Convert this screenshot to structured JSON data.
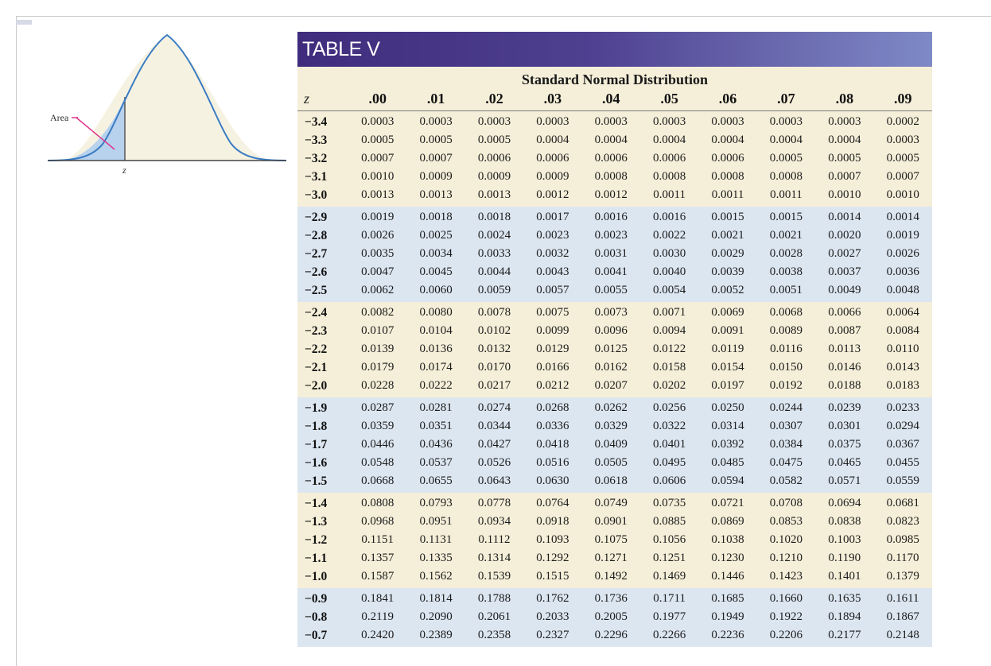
{
  "figure": {
    "area_label": "Area",
    "z_label": "z"
  },
  "table": {
    "title": "TABLE V",
    "subtitle": "Standard Normal Distribution",
    "z_header": "z",
    "columns": [
      ".00",
      ".01",
      ".02",
      ".03",
      ".04",
      ".05",
      ".06",
      ".07",
      ".08",
      ".09"
    ],
    "rows": [
      {
        "z": "−3.4",
        "values": [
          "0.0003",
          "0.0003",
          "0.0003",
          "0.0003",
          "0.0003",
          "0.0003",
          "0.0003",
          "0.0003",
          "0.0003",
          "0.0002"
        ]
      },
      {
        "z": "−3.3",
        "values": [
          "0.0005",
          "0.0005",
          "0.0005",
          "0.0004",
          "0.0004",
          "0.0004",
          "0.0004",
          "0.0004",
          "0.0004",
          "0.0003"
        ]
      },
      {
        "z": "−3.2",
        "values": [
          "0.0007",
          "0.0007",
          "0.0006",
          "0.0006",
          "0.0006",
          "0.0006",
          "0.0006",
          "0.0005",
          "0.0005",
          "0.0005"
        ]
      },
      {
        "z": "−3.1",
        "values": [
          "0.0010",
          "0.0009",
          "0.0009",
          "0.0009",
          "0.0008",
          "0.0008",
          "0.0008",
          "0.0008",
          "0.0007",
          "0.0007"
        ]
      },
      {
        "z": "−3.0",
        "values": [
          "0.0013",
          "0.0013",
          "0.0013",
          "0.0012",
          "0.0012",
          "0.0011",
          "0.0011",
          "0.0011",
          "0.0010",
          "0.0010"
        ]
      },
      {
        "z": "−2.9",
        "values": [
          "0.0019",
          "0.0018",
          "0.0018",
          "0.0017",
          "0.0016",
          "0.0016",
          "0.0015",
          "0.0015",
          "0.0014",
          "0.0014"
        ]
      },
      {
        "z": "−2.8",
        "values": [
          "0.0026",
          "0.0025",
          "0.0024",
          "0.0023",
          "0.0023",
          "0.0022",
          "0.0021",
          "0.0021",
          "0.0020",
          "0.0019"
        ]
      },
      {
        "z": "−2.7",
        "values": [
          "0.0035",
          "0.0034",
          "0.0033",
          "0.0032",
          "0.0031",
          "0.0030",
          "0.0029",
          "0.0028",
          "0.0027",
          "0.0026"
        ]
      },
      {
        "z": "−2.6",
        "values": [
          "0.0047",
          "0.0045",
          "0.0044",
          "0.0043",
          "0.0041",
          "0.0040",
          "0.0039",
          "0.0038",
          "0.0037",
          "0.0036"
        ]
      },
      {
        "z": "−2.5",
        "values": [
          "0.0062",
          "0.0060",
          "0.0059",
          "0.0057",
          "0.0055",
          "0.0054",
          "0.0052",
          "0.0051",
          "0.0049",
          "0.0048"
        ]
      },
      {
        "z": "−2.4",
        "values": [
          "0.0082",
          "0.0080",
          "0.0078",
          "0.0075",
          "0.0073",
          "0.0071",
          "0.0069",
          "0.0068",
          "0.0066",
          "0.0064"
        ]
      },
      {
        "z": "−2.3",
        "values": [
          "0.0107",
          "0.0104",
          "0.0102",
          "0.0099",
          "0.0096",
          "0.0094",
          "0.0091",
          "0.0089",
          "0.0087",
          "0.0084"
        ]
      },
      {
        "z": "−2.2",
        "values": [
          "0.0139",
          "0.0136",
          "0.0132",
          "0.0129",
          "0.0125",
          "0.0122",
          "0.0119",
          "0.0116",
          "0.0113",
          "0.0110"
        ]
      },
      {
        "z": "−2.1",
        "values": [
          "0.0179",
          "0.0174",
          "0.0170",
          "0.0166",
          "0.0162",
          "0.0158",
          "0.0154",
          "0.0150",
          "0.0146",
          "0.0143"
        ]
      },
      {
        "z": "−2.0",
        "values": [
          "0.0228",
          "0.0222",
          "0.0217",
          "0.0212",
          "0.0207",
          "0.0202",
          "0.0197",
          "0.0192",
          "0.0188",
          "0.0183"
        ]
      },
      {
        "z": "−1.9",
        "values": [
          "0.0287",
          "0.0281",
          "0.0274",
          "0.0268",
          "0.0262",
          "0.0256",
          "0.0250",
          "0.0244",
          "0.0239",
          "0.0233"
        ]
      },
      {
        "z": "−1.8",
        "values": [
          "0.0359",
          "0.0351",
          "0.0344",
          "0.0336",
          "0.0329",
          "0.0322",
          "0.0314",
          "0.0307",
          "0.0301",
          "0.0294"
        ]
      },
      {
        "z": "−1.7",
        "values": [
          "0.0446",
          "0.0436",
          "0.0427",
          "0.0418",
          "0.0409",
          "0.0401",
          "0.0392",
          "0.0384",
          "0.0375",
          "0.0367"
        ]
      },
      {
        "z": "−1.6",
        "values": [
          "0.0548",
          "0.0537",
          "0.0526",
          "0.0516",
          "0.0505",
          "0.0495",
          "0.0485",
          "0.0475",
          "0.0465",
          "0.0455"
        ]
      },
      {
        "z": "−1.5",
        "values": [
          "0.0668",
          "0.0655",
          "0.0643",
          "0.0630",
          "0.0618",
          "0.0606",
          "0.0594",
          "0.0582",
          "0.0571",
          "0.0559"
        ]
      },
      {
        "z": "−1.4",
        "values": [
          "0.0808",
          "0.0793",
          "0.0778",
          "0.0764",
          "0.0749",
          "0.0735",
          "0.0721",
          "0.0708",
          "0.0694",
          "0.0681"
        ]
      },
      {
        "z": "−1.3",
        "values": [
          "0.0968",
          "0.0951",
          "0.0934",
          "0.0918",
          "0.0901",
          "0.0885",
          "0.0869",
          "0.0853",
          "0.0838",
          "0.0823"
        ]
      },
      {
        "z": "−1.2",
        "values": [
          "0.1151",
          "0.1131",
          "0.1112",
          "0.1093",
          "0.1075",
          "0.1056",
          "0.1038",
          "0.1020",
          "0.1003",
          "0.0985"
        ]
      },
      {
        "z": "−1.1",
        "values": [
          "0.1357",
          "0.1335",
          "0.1314",
          "0.1292",
          "0.1271",
          "0.1251",
          "0.1230",
          "0.1210",
          "0.1190",
          "0.1170"
        ]
      },
      {
        "z": "−1.0",
        "values": [
          "0.1587",
          "0.1562",
          "0.1539",
          "0.1515",
          "0.1492",
          "0.1469",
          "0.1446",
          "0.1423",
          "0.1401",
          "0.1379"
        ]
      },
      {
        "z": "−0.9",
        "values": [
          "0.1841",
          "0.1814",
          "0.1788",
          "0.1762",
          "0.1736",
          "0.1711",
          "0.1685",
          "0.1660",
          "0.1635",
          "0.1611"
        ]
      },
      {
        "z": "−0.8",
        "values": [
          "0.2119",
          "0.2090",
          "0.2061",
          "0.2033",
          "0.2005",
          "0.1977",
          "0.1949",
          "0.1922",
          "0.1894",
          "0.1867"
        ]
      },
      {
        "z": "−0.7",
        "values": [
          "0.2420",
          "0.2389",
          "0.2358",
          "0.2327",
          "0.2296",
          "0.2266",
          "0.2236",
          "0.2206",
          "0.2177",
          "0.2148"
        ]
      }
    ]
  },
  "colors": {
    "header_dark": "#3f2c7c",
    "header_light": "#7f89c7",
    "band_light": "#f5efd9",
    "band_blue": "#dce6f1",
    "curve": "#3a7cc2",
    "shaded_area": "#b8d2ee",
    "area_pointer": "#e0338a"
  }
}
